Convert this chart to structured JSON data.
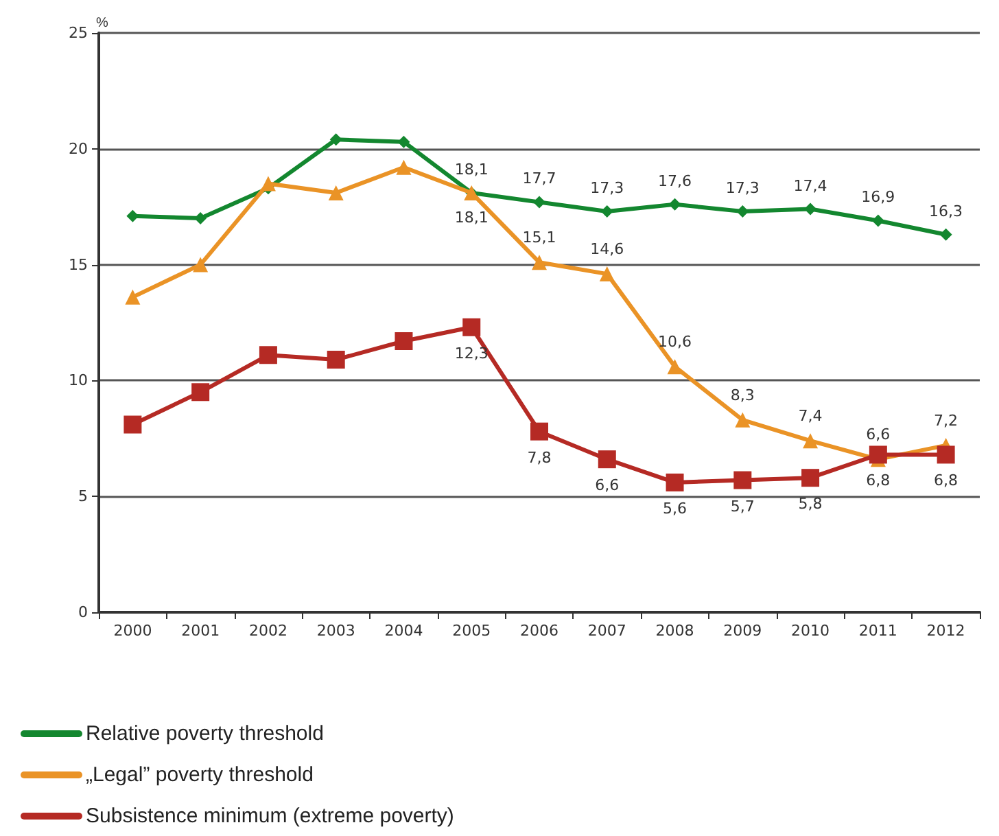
{
  "chart_data": {
    "type": "line",
    "ylabel": "%",
    "categories": [
      "2000",
      "2001",
      "2002",
      "2003",
      "2004",
      "2005",
      "2006",
      "2007",
      "2008",
      "2009",
      "2010",
      "2011",
      "2012"
    ],
    "ylim": [
      0,
      25
    ],
    "yticks": [
      0,
      5,
      10,
      15,
      20,
      25
    ],
    "grid": "y",
    "legend": "bottom left",
    "line_style": "solid",
    "series": [
      {
        "name": "Relative poverty threshold",
        "color": "#13872f",
        "marker": "diamond",
        "values": [
          17.1,
          17.0,
          18.3,
          20.4,
          20.3,
          18.1,
          17.7,
          17.3,
          17.6,
          17.3,
          17.4,
          16.9,
          16.3
        ],
        "value_labels": [
          null,
          null,
          null,
          null,
          null,
          "18,1",
          "17,7",
          "17,3",
          "17,6",
          "17,3",
          "17,4",
          "16,9",
          "16,3"
        ]
      },
      {
        "name": "„Legal” poverty threshold",
        "color": "#ea9326",
        "marker": "triangle",
        "values": [
          13.6,
          15.0,
          18.5,
          18.1,
          19.2,
          18.1,
          15.1,
          14.6,
          10.6,
          8.3,
          7.4,
          6.6,
          7.2
        ],
        "value_labels": [
          null,
          null,
          null,
          null,
          null,
          "18,1",
          "15,1",
          "14,6",
          "10,6",
          "8,3",
          "7,4",
          "6,6",
          "7,2"
        ]
      },
      {
        "name": "Subsistence minimum (extreme poverty)",
        "color": "#b52a24",
        "marker": "square",
        "values": [
          8.1,
          9.5,
          11.1,
          10.9,
          11.7,
          12.3,
          7.8,
          6.6,
          5.6,
          5.7,
          5.8,
          6.8,
          6.8
        ],
        "value_labels": [
          null,
          null,
          null,
          null,
          null,
          "12,3",
          "7,8",
          "6,6",
          "5,6",
          "5,7",
          "5,8",
          "6,8",
          "6,8"
        ]
      }
    ]
  }
}
